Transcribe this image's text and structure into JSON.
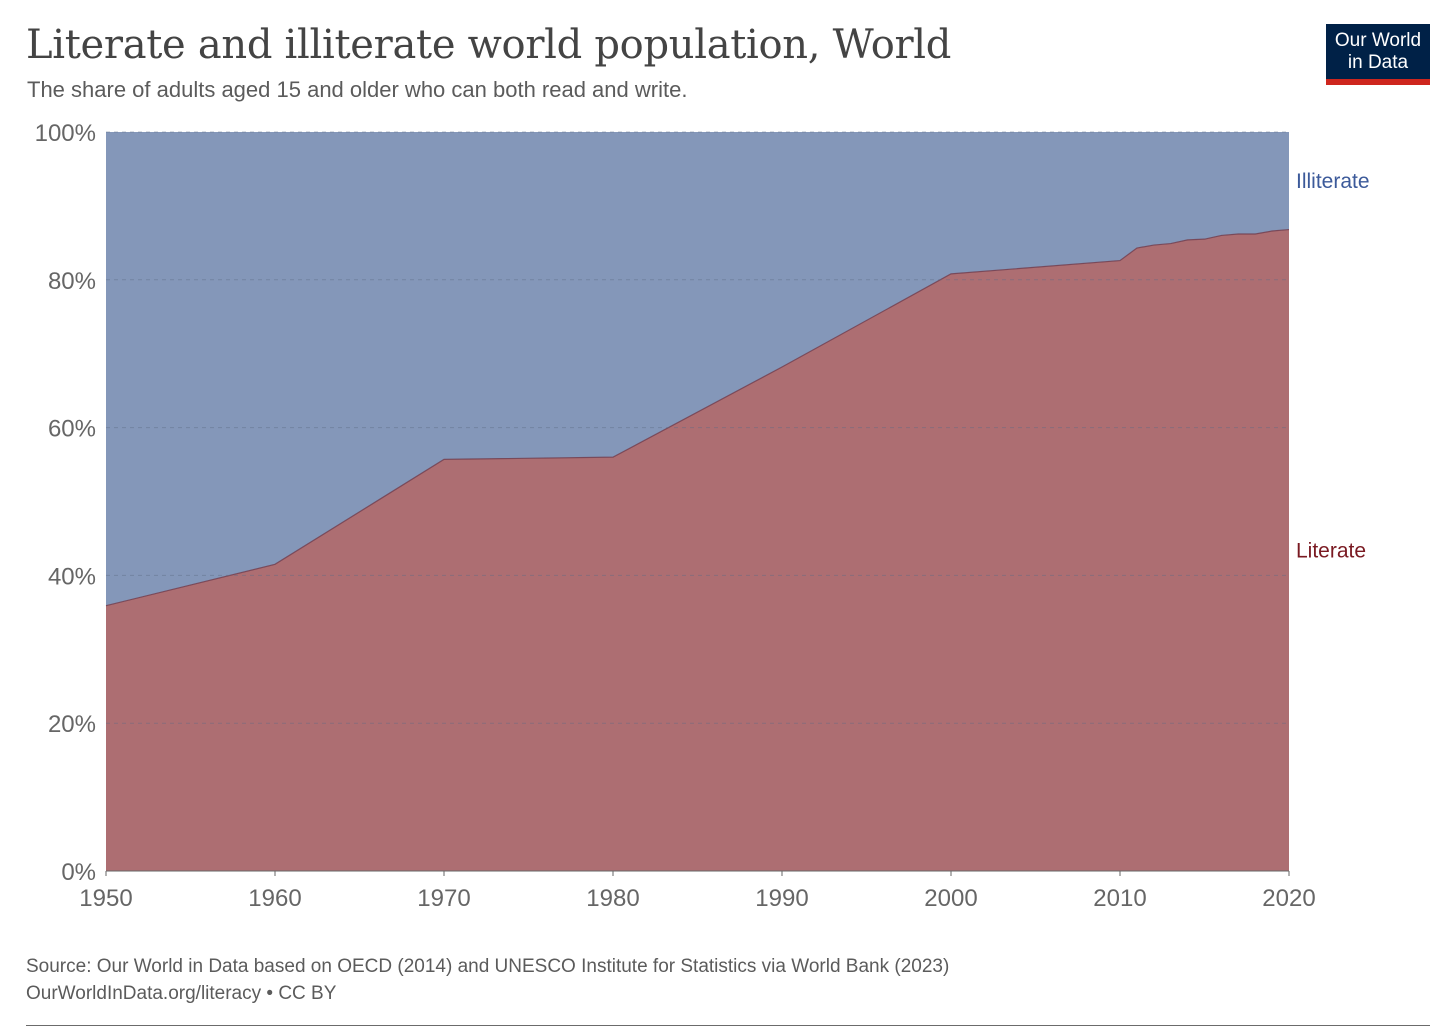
{
  "header": {
    "title": "Literate and illiterate world population, World",
    "subtitle": "The share of adults aged 15 and older who can both read and write."
  },
  "logo": {
    "line1": "Our World",
    "line2": "in Data",
    "background_color": "#002147",
    "accent_color": "#ce261e"
  },
  "chart_data": {
    "type": "area",
    "stacked": true,
    "x": [
      1950,
      1960,
      1970,
      1980,
      1990,
      2000,
      2010,
      2011,
      2012,
      2013,
      2014,
      2015,
      2016,
      2017,
      2018,
      2019,
      2020
    ],
    "series": [
      {
        "name": "Literate",
        "color": "#ad6e72",
        "label_color": "#7a1a22",
        "values": [
          35.9,
          41.5,
          55.7,
          56.0,
          68.2,
          80.8,
          82.6,
          84.3,
          84.7,
          84.9,
          85.4,
          85.5,
          86.0,
          86.2,
          86.2,
          86.6,
          86.8
        ]
      },
      {
        "name": "Illiterate",
        "color": "#8497b9",
        "label_color": "#3c5a9a",
        "values": [
          64.1,
          58.5,
          44.3,
          44.0,
          31.8,
          19.2,
          17.4,
          15.7,
          15.3,
          15.1,
          14.6,
          14.5,
          14.0,
          13.8,
          13.8,
          13.4,
          13.2
        ]
      }
    ],
    "title": "Literate and illiterate world population, World",
    "xlabel": "",
    "ylabel": "",
    "xlim": [
      1950,
      2020
    ],
    "ylim": [
      0,
      100
    ],
    "y_ticks": [
      {
        "value": 0,
        "label": "0%"
      },
      {
        "value": 20,
        "label": "20%"
      },
      {
        "value": 40,
        "label": "40%"
      },
      {
        "value": 60,
        "label": "60%"
      },
      {
        "value": 80,
        "label": "80%"
      },
      {
        "value": 100,
        "label": "100%"
      }
    ],
    "x_ticks": [
      {
        "value": 1950,
        "label": "1950"
      },
      {
        "value": 1960,
        "label": "1960"
      },
      {
        "value": 1970,
        "label": "1970"
      },
      {
        "value": 1980,
        "label": "1980"
      },
      {
        "value": 1990,
        "label": "1990"
      },
      {
        "value": 2000,
        "label": "2000"
      },
      {
        "value": 2010,
        "label": "2010"
      },
      {
        "value": 2020,
        "label": "2020"
      }
    ],
    "grid": true,
    "legend": "right, inline labels"
  },
  "footer": {
    "source": "Source: Our World in Data based on OECD (2014) and UNESCO Institute for Statistics via World Bank (2023)",
    "url_license": "OurWorldInData.org/literacy • CC BY"
  }
}
